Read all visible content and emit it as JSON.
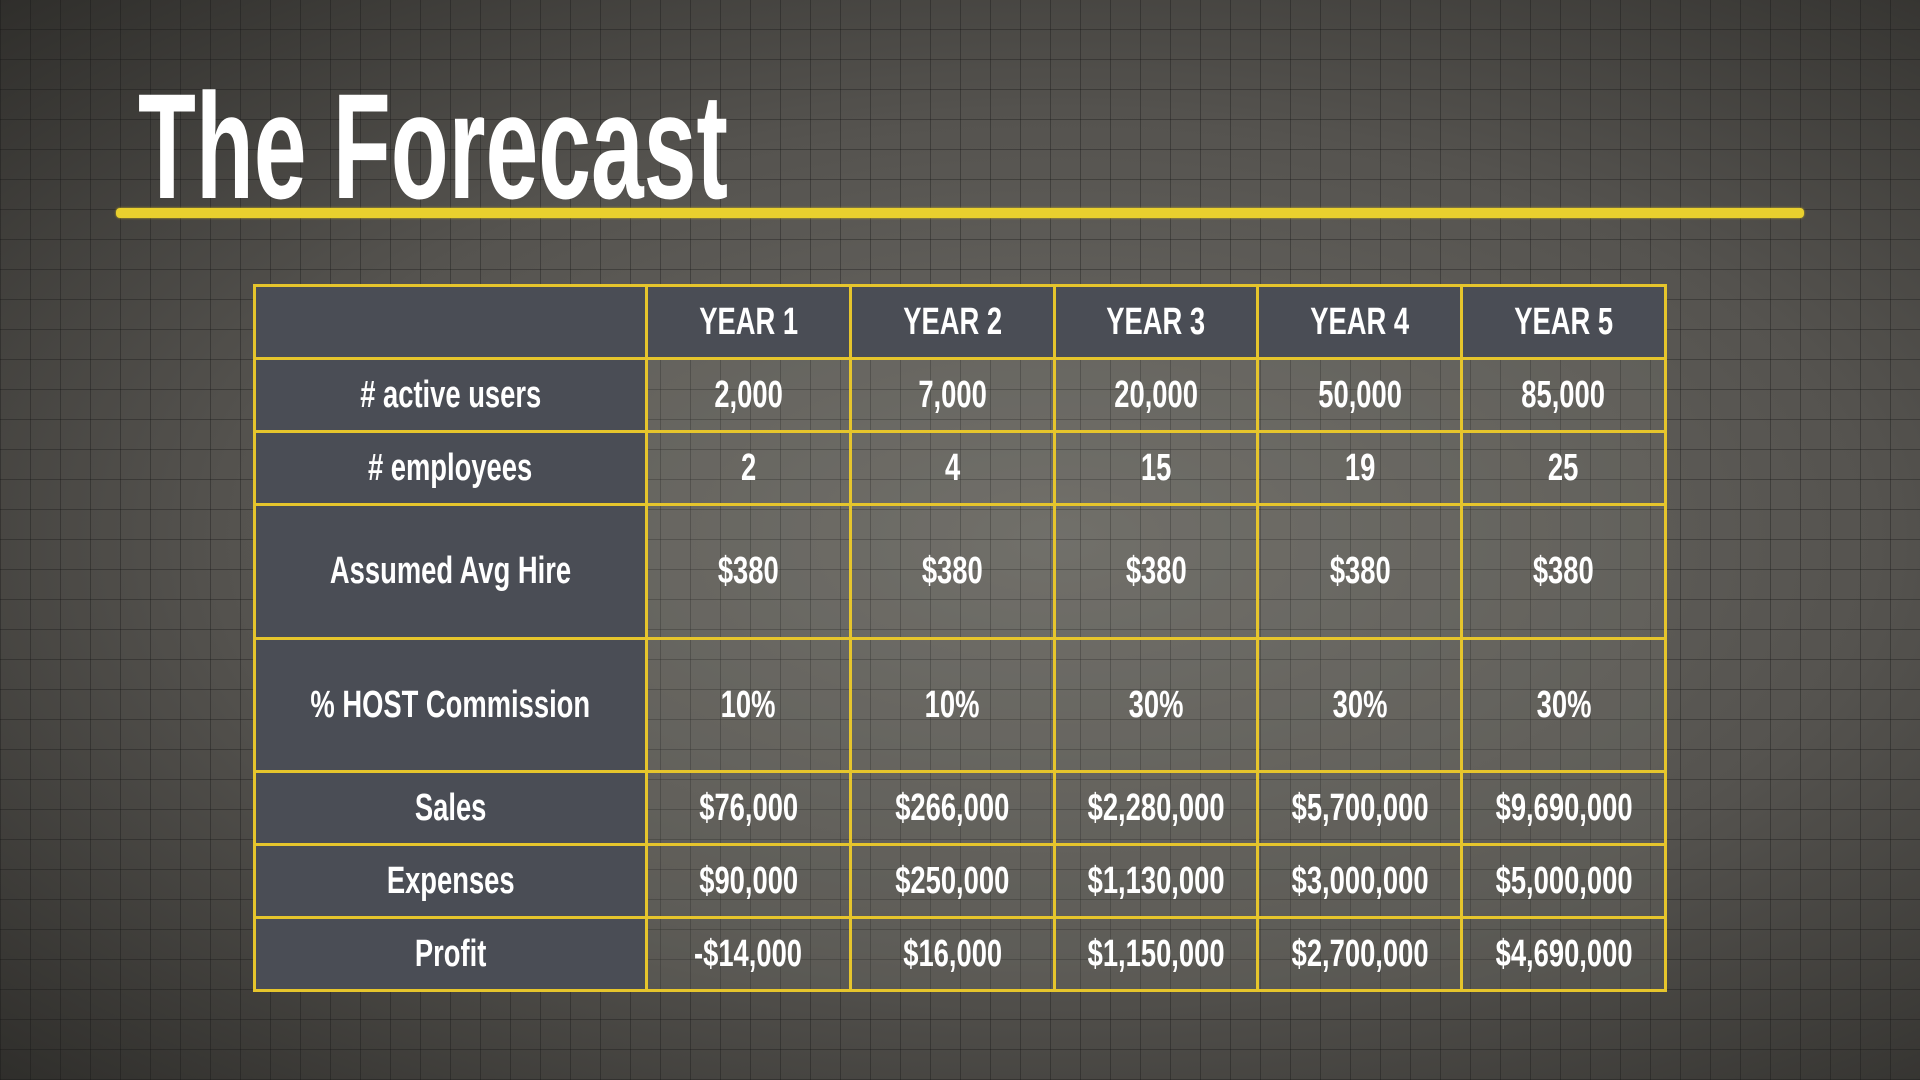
{
  "header": {
    "title": "The Forecast"
  },
  "table": {
    "columns": [
      "YEAR 1",
      "YEAR 2",
      "YEAR 3",
      "YEAR 4",
      "YEAR 5"
    ],
    "rows": [
      {
        "label": "# active users",
        "cells": [
          "2,000",
          "7,000",
          "20,000",
          "50,000",
          "85,000"
        ]
      },
      {
        "label": "# employees",
        "cells": [
          "2",
          "4",
          "15",
          "19",
          "25"
        ]
      },
      {
        "label": "Assumed Avg Hire",
        "cells": [
          "$380",
          "$380",
          "$380",
          "$380",
          "$380"
        ]
      },
      {
        "label": "% HOST Commission",
        "cells": [
          "10%",
          "10%",
          "30%",
          "30%",
          "30%"
        ]
      },
      {
        "label": "Sales",
        "cells": [
          "$76,000",
          "$266,000",
          "$2,280,000",
          "$5,700,000",
          "$9,690,000"
        ]
      },
      {
        "label": "Expenses",
        "cells": [
          "$90,000",
          "$250,000",
          "$1,130,000",
          "$3,000,000",
          "$5,000,000"
        ]
      },
      {
        "label": "Profit",
        "cells": [
          "-$14,000",
          "$16,000",
          "$1,150,000",
          "$2,700,000",
          "$4,690,000"
        ]
      }
    ]
  }
}
